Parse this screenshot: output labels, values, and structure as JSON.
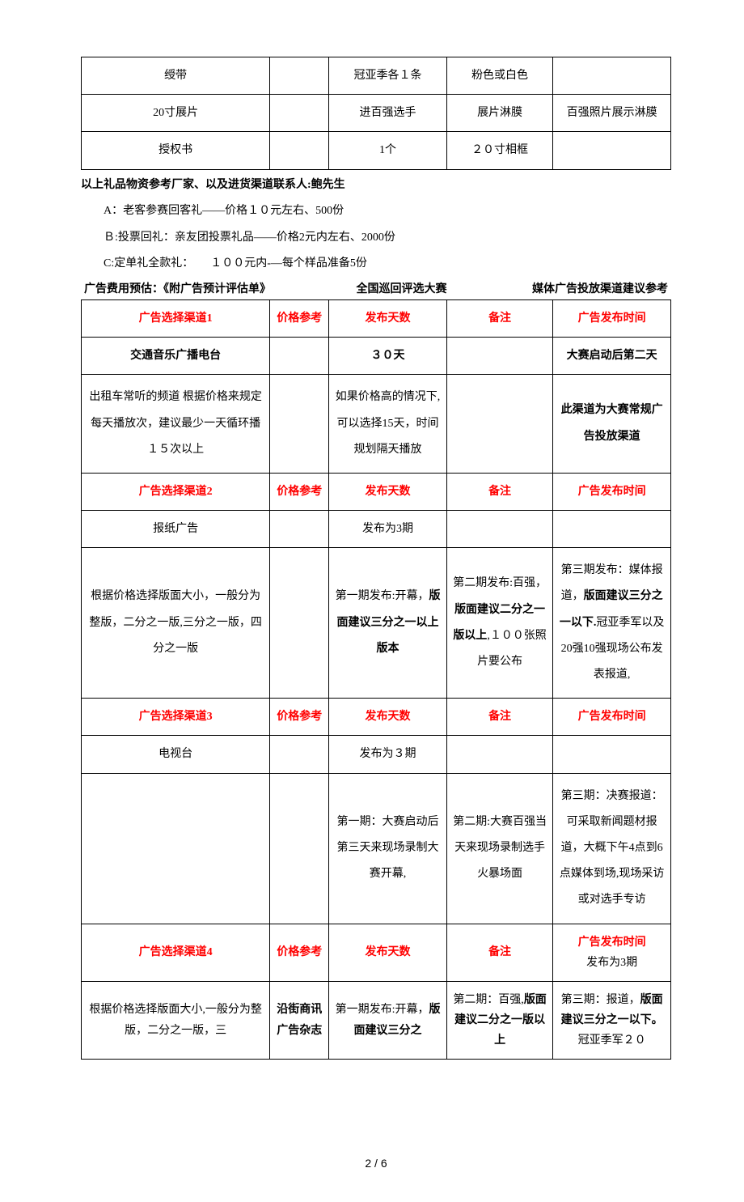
{
  "top_table": {
    "rows": [
      [
        "绶带",
        "",
        "冠亚季各１条",
        "粉色或白色",
        ""
      ],
      [
        "20寸展片",
        "",
        "进百强选手",
        "展片淋膜",
        "百强照片展示淋膜"
      ],
      [
        "授权书",
        "",
        "1个",
        "２０寸相框",
        ""
      ]
    ]
  },
  "notes": {
    "line_contact_prefix": "以上礼品物资参考厂家、以及进货渠道联系人:",
    "line_contact_name": "鲍先生",
    "line_a": "A：老客参赛回客礼——价格１０元左右、500份",
    "line_b": "Ｂ:投票回礼：亲友团投票礼品——价格2元内左右、2000份",
    "line_c": "C:定单礼全款礼：　　１００元内-—每个样品准备5份"
  },
  "ad_header": {
    "left_prefix": "广告费用预估：",
    "left_title": "《附广告预计评估单》",
    "mid": "全国巡回评选大赛",
    "right": "媒体广告投放渠道建议参考"
  },
  "ad_table": {
    "sections": [
      {
        "header": [
          "广告选择渠道1",
          "价格参考",
          "发布天数",
          "备注",
          "广告发布时间"
        ],
        "row1": [
          "交通音乐广播电台",
          "",
          "３０天",
          "",
          "大赛启动后第二天"
        ],
        "row2_c1": "出租车常听的频道\n根据价格来规定每天播放次，建议最少一天循环播１５次以上",
        "row2_c2": "",
        "row2_c3": "如果价格高的情况下,可以选择15天，时间规划隔天播放",
        "row2_c4": "",
        "row2_c5_bold": "此渠道为大赛常规广告投放渠道"
      },
      {
        "header": [
          "广告选择渠道2",
          "价格参考",
          "发布天数",
          "备注",
          "广告发布时间"
        ],
        "row1": [
          "报纸广告",
          "",
          "发布为3期",
          "",
          ""
        ],
        "row2_c1": "根据价格选择版面大小，一般分为整版，二分之一版,三分之一版，四分之一版",
        "row2_c2": "",
        "row2_c3_pre": "第一期发布:开幕，",
        "row2_c3_bold": "版面建议三分之一以上版本",
        "row2_c4_pre": "第二期发布:百强，",
        "row2_c4_bold": "版面建议二分之一版以上",
        "row2_c4_post": ",１００张照片要公布",
        "row2_c5_pre": "第三期发布：媒体报道，",
        "row2_c5_bold": "版面建议三分之一以下.",
        "row2_c5_post": "冠亚季军以及20强10强现场公布发表报道,"
      },
      {
        "header": [
          "广告选择渠道3",
          "价格参考",
          "发布天数",
          "备注",
          "广告发布时间"
        ],
        "row1": [
          "电视台",
          "",
          "发布为３期",
          "",
          ""
        ],
        "row2_c1": "",
        "row2_c2": "",
        "row2_c3": "第一期：大赛启动后第三天来现场录制大赛开幕,",
        "row2_c4": "第二期:大赛百强当天来现场录制选手火暴场面",
        "row2_c5": "第三期：决赛报道：可采取新闻题材报道，大概下午4点到6点媒体到场,现场采访或对选手专访"
      },
      {
        "header_c1": "广告选择渠道4",
        "header_c2": "价格参考",
        "header_c3": "发布天数",
        "header_c4": "备注",
        "header_c5_line1": "广告发布时间",
        "header_c5_line2": "发布为3期",
        "row_c1": "根据价格选择版面大小,一般分为整版，二分之一版，三",
        "row_c2_bold": "沿街商讯广告杂志",
        "row_c3_pre": "第一期发布:开幕，",
        "row_c3_bold": "版面建议三分之",
        "row_c4_pre": "第二期：百强,",
        "row_c4_bold": "版面建议二分之一版以上",
        "row_c5_pre": "第三期：报道，",
        "row_c5_bold": "版面建议三分之一以下。",
        "row_c5_post": "冠亚季军２０"
      }
    ]
  },
  "footer": "2 / 6",
  "colors": {
    "red": "#ff0000",
    "black": "#000000",
    "bg": "#ffffff"
  }
}
